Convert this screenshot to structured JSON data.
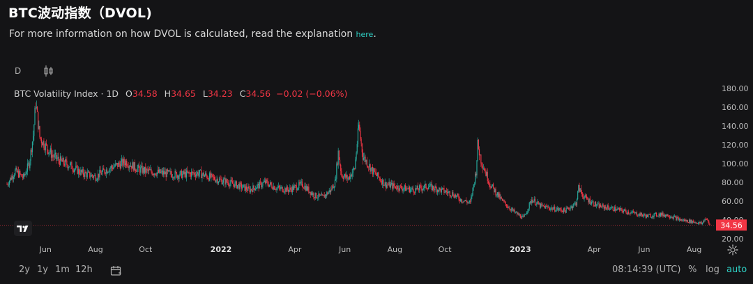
{
  "header": {
    "title": "BTC波动指数（DVOL)",
    "subtitle_text": "For more information on how DVOL is calculated, read the explanation",
    "subtitle_link": "here",
    "subtitle_end": "."
  },
  "toolbar": {
    "interval": "D",
    "candle_icon": "candlestick-icon"
  },
  "legend": {
    "symbol": "BTC Volatility Index · 1D",
    "o_label": "O",
    "o_value": "34.58",
    "h_label": "H",
    "h_value": "34.65",
    "l_label": "L",
    "l_value": "34.23",
    "c_label": "C",
    "c_value": "34.56",
    "change": "−0.02 (−0.06%)"
  },
  "colors": {
    "up": "#26a69a",
    "down": "#f23645",
    "accent": "#2fd4c8",
    "background": "#141416",
    "price_tag": "#f23645"
  },
  "chart_data": {
    "type": "candlestick",
    "title": "BTC Volatility Index · 1D",
    "y_ticks": [
      "180.00",
      "160.00",
      "140.00",
      "120.00",
      "100.00",
      "80.00",
      "60.00",
      "40.00",
      "20.00"
    ],
    "ylim": [
      20,
      180
    ],
    "x_ticks": [
      "Jun",
      "Aug",
      "Oct",
      "2022",
      "Apr",
      "Jun",
      "Aug",
      "Oct",
      "2023",
      "Apr",
      "Jun",
      "Aug"
    ],
    "x_tick_dates": [
      "2021-06-01",
      "2021-08-01",
      "2021-10-01",
      "2022-01-01",
      "2022-04-01",
      "2022-06-01",
      "2022-08-01",
      "2022-10-01",
      "2023-01-01",
      "2023-04-01",
      "2023-06-01",
      "2023-08-01"
    ],
    "x_start": "2021-04-15",
    "x_end": "2023-08-20",
    "last_price": "34.56",
    "grid": false,
    "series": [
      {
        "keypoints": [
          [
            "2021-04-15",
            78
          ],
          [
            "2021-04-25",
            92
          ],
          [
            "2021-05-05",
            85
          ],
          [
            "2021-05-12",
            100
          ],
          [
            "2021-05-17",
            130
          ],
          [
            "2021-05-20",
            165
          ],
          [
            "2021-05-25",
            128
          ],
          [
            "2021-05-31",
            120
          ],
          [
            "2021-06-10",
            108
          ],
          [
            "2021-06-20",
            102
          ],
          [
            "2021-07-01",
            98
          ],
          [
            "2021-07-15",
            90
          ],
          [
            "2021-08-01",
            86
          ],
          [
            "2021-08-15",
            94
          ],
          [
            "2021-09-07",
            102
          ],
          [
            "2021-09-20",
            95
          ],
          [
            "2021-10-01",
            92
          ],
          [
            "2021-10-20",
            90
          ],
          [
            "2021-11-10",
            88
          ],
          [
            "2021-12-04",
            90
          ],
          [
            "2021-12-20",
            85
          ],
          [
            "2022-01-10",
            80
          ],
          [
            "2022-01-24",
            76
          ],
          [
            "2022-02-05",
            72
          ],
          [
            "2022-02-24",
            80
          ],
          [
            "2022-03-10",
            74
          ],
          [
            "2022-03-25",
            72
          ],
          [
            "2022-04-10",
            78
          ],
          [
            "2022-04-25",
            66
          ],
          [
            "2022-05-05",
            64
          ],
          [
            "2022-05-10",
            68
          ],
          [
            "2022-05-15",
            72
          ],
          [
            "2022-05-20",
            80
          ],
          [
            "2022-05-24",
            112
          ],
          [
            "2022-05-28",
            88
          ],
          [
            "2022-06-05",
            84
          ],
          [
            "2022-06-13",
            95
          ],
          [
            "2022-06-18",
            140
          ],
          [
            "2022-06-23",
            108
          ],
          [
            "2022-07-05",
            92
          ],
          [
            "2022-07-20",
            78
          ],
          [
            "2022-08-10",
            74
          ],
          [
            "2022-08-25",
            72
          ],
          [
            "2022-09-10",
            76
          ],
          [
            "2022-09-25",
            72
          ],
          [
            "2022-10-10",
            68
          ],
          [
            "2022-10-20",
            62
          ],
          [
            "2022-11-01",
            58
          ],
          [
            "2022-11-08",
            92
          ],
          [
            "2022-11-10",
            120
          ],
          [
            "2022-11-14",
            104
          ],
          [
            "2022-11-25",
            78
          ],
          [
            "2022-12-10",
            60
          ],
          [
            "2022-12-25",
            48
          ],
          [
            "2023-01-05",
            42
          ],
          [
            "2023-01-15",
            62
          ],
          [
            "2023-01-25",
            55
          ],
          [
            "2023-02-10",
            52
          ],
          [
            "2023-02-25",
            50
          ],
          [
            "2023-03-10",
            58
          ],
          [
            "2023-03-13",
            74
          ],
          [
            "2023-03-20",
            64
          ],
          [
            "2023-04-05",
            55
          ],
          [
            "2023-04-25",
            52
          ],
          [
            "2023-05-15",
            48
          ],
          [
            "2023-06-05",
            44
          ],
          [
            "2023-06-20",
            46
          ],
          [
            "2023-07-01",
            45
          ],
          [
            "2023-07-15",
            40
          ],
          [
            "2023-08-01",
            38
          ],
          [
            "2023-08-10",
            36
          ],
          [
            "2023-08-15",
            42
          ],
          [
            "2023-08-20",
            34.56
          ]
        ]
      }
    ]
  },
  "bottom_bar": {
    "ranges": [
      "2y",
      "1y",
      "1m",
      "12h"
    ],
    "calendar_icon": "calendar-icon",
    "clock": "08:14:39 (UTC)",
    "percent": "%",
    "log": "log",
    "auto": "auto"
  }
}
